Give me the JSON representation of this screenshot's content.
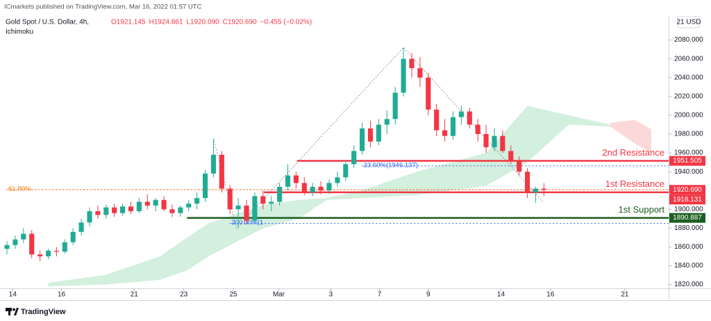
{
  "header": {
    "publisher": "ICmarkets published on TradingView.com, Mar 16, 2022 01:57 UTC",
    "symbol": "Gold Spot / U.S. Dollar, 4h,",
    "indicator": "Ichimoku",
    "ohlc": [
      "O1921.145",
      "H1924.861",
      "L1920.090",
      "C1920.690",
      "−0.455 (−0.02%)"
    ],
    "currency": "21 USD"
  },
  "footer": {
    "brand": "TradingView"
  },
  "chart_data": {
    "type": "candlestick",
    "grid": false,
    "up_color": "#22ab94",
    "down_color": "#f23645",
    "xlim": [
      -0.17,
      80.1
    ],
    "ylim": [
      1816,
      2107
    ],
    "xticks": [
      {
        "value": 0.7,
        "label": "14"
      },
      {
        "value": 6.6,
        "label": "16"
      },
      {
        "value": 15.4,
        "label": "21"
      },
      {
        "value": 21.4,
        "label": "23"
      },
      {
        "value": 27.4,
        "label": "25"
      },
      {
        "value": 32.9,
        "label": "Mar"
      },
      {
        "value": 39.2,
        "label": "3"
      },
      {
        "value": 45.1,
        "label": "7"
      },
      {
        "value": 51,
        "label": "9"
      },
      {
        "value": 59.8,
        "label": "14"
      },
      {
        "value": 65.8,
        "label": "16"
      },
      {
        "value": 74.8,
        "label": "21"
      }
    ],
    "yticks": [
      {
        "value": 1820,
        "label": "1820.000"
      },
      {
        "value": 1840,
        "label": "1840.000"
      },
      {
        "value": 1860,
        "label": "1860.000"
      },
      {
        "value": 1880,
        "label": "1880.000"
      },
      {
        "value": 1900,
        "label": "1900.000"
      },
      {
        "value": 1920,
        "label": "1920.000"
      },
      {
        "value": 1940,
        "label": "1940.000"
      },
      {
        "value": 1960,
        "label": "1960.000"
      },
      {
        "value": 1980,
        "label": "1980.000"
      },
      {
        "value": 2000,
        "label": "2000.000"
      },
      {
        "value": 2020,
        "label": "2020.000"
      },
      {
        "value": 2040,
        "label": "2040.000"
      },
      {
        "value": 2060,
        "label": "2060.000"
      },
      {
        "value": 2080,
        "label": "2080.000"
      }
    ],
    "candles": [
      [
        1858,
        1866,
        1852,
        1862
      ],
      [
        1862,
        1872,
        1858,
        1868
      ],
      [
        1868,
        1880,
        1864,
        1874
      ],
      [
        1874,
        1878,
        1848,
        1852
      ],
      [
        1852,
        1856,
        1845,
        1850
      ],
      [
        1850,
        1858,
        1847,
        1856
      ],
      [
        1856,
        1860,
        1850,
        1855
      ],
      [
        1855,
        1868,
        1853,
        1865
      ],
      [
        1865,
        1880,
        1862,
        1876
      ],
      [
        1876,
        1890,
        1872,
        1886
      ],
      [
        1886,
        1902,
        1882,
        1898
      ],
      [
        1898,
        1904,
        1890,
        1894
      ],
      [
        1894,
        1905,
        1890,
        1902
      ],
      [
        1902,
        1906,
        1892,
        1896
      ],
      [
        1896,
        1906,
        1893,
        1903
      ],
      [
        1903,
        1908,
        1895,
        1898
      ],
      [
        1898,
        1912,
        1896,
        1908
      ],
      [
        1908,
        1916,
        1900,
        1904
      ],
      [
        1904,
        1912,
        1898,
        1910
      ],
      [
        1910,
        1914,
        1898,
        1900
      ],
      [
        1900,
        1905,
        1892,
        1896
      ],
      [
        1896,
        1904,
        1892,
        1902
      ],
      [
        1902,
        1910,
        1898,
        1906
      ],
      [
        1906,
        1918,
        1900,
        1912
      ],
      [
        1912,
        1942,
        1908,
        1938
      ],
      [
        1938,
        1975,
        1934,
        1958
      ],
      [
        1958,
        1962,
        1918,
        1922
      ],
      [
        1922,
        1926,
        1895,
        1900
      ],
      [
        1900,
        1912,
        1880,
        1904
      ],
      [
        1904,
        1910,
        1884,
        1888
      ],
      [
        1888,
        1918,
        1886,
        1914
      ],
      [
        1914,
        1920,
        1900,
        1906
      ],
      [
        1906,
        1914,
        1898,
        1908
      ],
      [
        1908,
        1928,
        1904,
        1924
      ],
      [
        1924,
        1948,
        1920,
        1936
      ],
      [
        1936,
        1940,
        1922,
        1928
      ],
      [
        1928,
        1934,
        1915,
        1918
      ],
      [
        1918,
        1928,
        1914,
        1924
      ],
      [
        1924,
        1930,
        1916,
        1920
      ],
      [
        1920,
        1932,
        1916,
        1928
      ],
      [
        1928,
        1940,
        1924,
        1934
      ],
      [
        1934,
        1952,
        1930,
        1948
      ],
      [
        1948,
        1968,
        1944,
        1962
      ],
      [
        1962,
        1992,
        1958,
        1986
      ],
      [
        1986,
        1994,
        1966,
        1972
      ],
      [
        1972,
        1996,
        1968,
        1990
      ],
      [
        1990,
        2005,
        1980,
        1996
      ],
      [
        1996,
        2030,
        1990,
        2024
      ],
      [
        2024,
        2072,
        2020,
        2060
      ],
      [
        2060,
        2066,
        2040,
        2050
      ],
      [
        2050,
        2062,
        2030,
        2040
      ],
      [
        2040,
        2045,
        2000,
        2006
      ],
      [
        2006,
        2012,
        1978,
        1984
      ],
      [
        1984,
        1996,
        1972,
        1978
      ],
      [
        1978,
        2004,
        1974,
        1998
      ],
      [
        1998,
        2010,
        1990,
        2004
      ],
      [
        2004,
        2008,
        1986,
        1990
      ],
      [
        1990,
        1996,
        1972,
        1980
      ],
      [
        1980,
        1990,
        1960,
        1966
      ],
      [
        1966,
        1986,
        1962,
        1978
      ],
      [
        1978,
        1984,
        1960,
        1962
      ],
      [
        1962,
        1968,
        1948,
        1952
      ],
      [
        1952,
        1956,
        1936,
        1940
      ],
      [
        1940,
        1944,
        1912,
        1918
      ],
      [
        1918,
        1924,
        1907,
        1922
      ],
      [
        1922,
        1928,
        1914,
        1920.69
      ]
    ],
    "clouds": [
      {
        "color": "#c8ebd5",
        "x": [
          5,
          11.8,
          18.5,
          21.8,
          24.4,
          27.7,
          31.1,
          35.3,
          38.7,
          42.9,
          49.6,
          58,
          63,
          68,
          73
        ],
        "upper": [
          1822,
          1830,
          1850,
          1870,
          1885,
          1895,
          1905,
          1910,
          1912,
          1920,
          1940,
          1960,
          2010,
          2000,
          1990
        ],
        "lower": [
          1818,
          1820,
          1825,
          1835,
          1850,
          1865,
          1880,
          1890,
          1910,
          1912,
          1915,
          1925,
          1950,
          1990,
          1988
        ]
      },
      {
        "color": "#fbd0d0",
        "x": [
          73,
          76,
          78
        ],
        "upper": [
          1992,
          1995,
          1985
        ],
        "lower": [
          1988,
          1970,
          1960
        ]
      }
    ],
    "fib_path": {
      "x": [
        25,
        27.8,
        48,
        65
      ],
      "y": [
        1975,
        1880,
        2072,
        1907
      ]
    },
    "fib_levels": [
      {
        "label": "23.60%(1946.137)",
        "value": 1946.137,
        "start": 43,
        "color": "#2962ff"
      },
      {
        "label": "200.00%(1",
        "value": 1885,
        "start": 27,
        "color": "#2962ff"
      },
      {
        "label": "61.80%",
        "value": 1921,
        "start": 0,
        "color": "#f57c00"
      }
    ],
    "levels": [
      {
        "name": "2nd Resistance",
        "value": 1951.505,
        "label": "1951.505",
        "start": 35.1,
        "color": "#f23645"
      },
      {
        "name": "1st Resistance",
        "value": 1918.131,
        "label": "1918.131",
        "start": 31.1,
        "color": "#f23645"
      },
      {
        "name": "1st Support",
        "value": 1890.887,
        "label": "1890.887",
        "start": 21.8,
        "color": "#1b5e20"
      }
    ],
    "last_price": {
      "value": 1920.69,
      "label": "1920.690",
      "color": "#f23645"
    }
  }
}
